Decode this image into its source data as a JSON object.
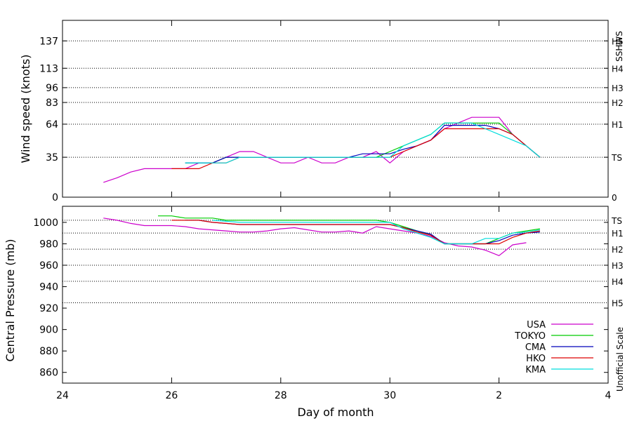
{
  "chart_data": {
    "type": "line",
    "xlabel": "Day of month",
    "x_ticks": [
      {
        "day": 24,
        "label": "24"
      },
      {
        "day": 26,
        "label": "26"
      },
      {
        "day": 28,
        "label": "28"
      },
      {
        "day": 30,
        "label": "30"
      },
      {
        "day": 32,
        "label": "2"
      },
      {
        "day": 34,
        "label": "4"
      }
    ],
    "xlim": [
      24,
      34
    ],
    "legend": [
      {
        "name": "USA",
        "color": "#cc00cc"
      },
      {
        "name": "TOKYO",
        "color": "#00cc00"
      },
      {
        "name": "CMA",
        "color": "#0000bb"
      },
      {
        "name": "HKO",
        "color": "#dd0000"
      },
      {
        "name": "KMA",
        "color": "#00dddd"
      }
    ],
    "wind": {
      "ylabel": "Wind speed (knots)",
      "right_label": "SSHWS",
      "ylim": [
        0,
        155
      ],
      "yticks": [
        0,
        35,
        64,
        83,
        96,
        113,
        137
      ],
      "levels": [
        {
          "value": 0,
          "label": "0"
        },
        {
          "value": 35,
          "label": "TS"
        },
        {
          "value": 64,
          "label": "H1"
        },
        {
          "value": 83,
          "label": "H2"
        },
        {
          "value": 96,
          "label": "H3"
        },
        {
          "value": 113,
          "label": "H4"
        },
        {
          "value": 137,
          "label": "H5"
        }
      ],
      "series": [
        {
          "name": "USA",
          "x": [
            24.75,
            25.0,
            25.25,
            25.5,
            25.75,
            26.0,
            26.25,
            26.5,
            26.75,
            27.0,
            27.25,
            27.5,
            27.75,
            28.0,
            28.25,
            28.5,
            28.75,
            29.0,
            29.25,
            29.5,
            29.75,
            30.0,
            30.25,
            30.5,
            30.75,
            31.0,
            31.25,
            31.5,
            31.75,
            32.0,
            32.25,
            32.5,
            32.75
          ],
          "y": [
            13,
            17,
            22,
            25,
            25,
            25,
            25,
            30,
            30,
            35,
            40,
            40,
            35,
            30,
            30,
            35,
            30,
            30,
            35,
            35,
            40,
            30,
            40,
            45,
            50,
            60,
            65,
            70,
            70,
            70,
            55,
            45,
            35
          ]
        },
        {
          "name": "TOKYO",
          "x": [
            26.25,
            26.5,
            26.75,
            27.0,
            27.25,
            27.5,
            27.75,
            28.0,
            28.25,
            28.5,
            28.75,
            29.0,
            29.25,
            29.5,
            29.75,
            30.0,
            30.25,
            30.5,
            30.75,
            31.0,
            31.25,
            31.5,
            31.75,
            32.0,
            32.25,
            32.5,
            32.75
          ],
          "y": [
            30,
            30,
            30,
            35,
            35,
            35,
            35,
            35,
            35,
            35,
            35,
            35,
            35,
            35,
            35,
            40,
            45,
            50,
            55,
            65,
            65,
            65,
            65,
            65,
            55,
            45,
            35
          ]
        },
        {
          "name": "CMA",
          "x": [
            26.25,
            26.5,
            26.75,
            27.0,
            27.25,
            27.5,
            27.75,
            28.0,
            28.25,
            28.5,
            28.75,
            29.0,
            29.25,
            29.5,
            29.75,
            30.0,
            30.25,
            30.5,
            30.75,
            31.0,
            31.25,
            31.5,
            31.75,
            32.0,
            32.25,
            32.5,
            32.75
          ],
          "y": [
            30,
            30,
            30,
            35,
            35,
            35,
            35,
            35,
            35,
            35,
            35,
            35,
            35,
            38,
            38,
            38,
            42,
            45,
            50,
            63,
            63,
            63,
            63,
            60,
            55,
            45,
            35
          ]
        },
        {
          "name": "HKO",
          "x": [
            26.0,
            26.25,
            26.5,
            26.75,
            27.0,
            27.25,
            27.5,
            27.75,
            28.0,
            28.25,
            28.5,
            28.75,
            29.0,
            29.25,
            29.5,
            29.75,
            30.0,
            30.25,
            30.5,
            30.75,
            31.0,
            31.25,
            31.5,
            31.75,
            32.0,
            32.25,
            32.5,
            32.75
          ],
          "y": [
            25,
            25,
            25,
            30,
            30,
            35,
            35,
            35,
            35,
            35,
            35,
            35,
            35,
            35,
            35,
            35,
            35,
            40,
            45,
            50,
            60,
            60,
            60,
            60,
            60,
            55,
            45,
            35
          ]
        },
        {
          "name": "KMA",
          "x": [
            26.25,
            26.5,
            26.75,
            27.0,
            27.25,
            27.5,
            27.75,
            28.0,
            28.25,
            28.5,
            28.75,
            29.0,
            29.25,
            29.5,
            29.75,
            30.0,
            30.25,
            30.5,
            30.75,
            31.0,
            31.25,
            31.5,
            31.75,
            32.0,
            32.25,
            32.5,
            32.75
          ],
          "y": [
            30,
            30,
            30,
            30,
            35,
            35,
            35,
            35,
            35,
            35,
            35,
            35,
            35,
            35,
            35,
            35,
            45,
            50,
            55,
            65,
            65,
            65,
            60,
            55,
            50,
            45,
            35
          ]
        }
      ]
    },
    "pressure": {
      "ylabel": "Central Pressure (mb)",
      "right_label": "Unofficial Scale",
      "ylim": [
        850,
        1015
      ],
      "yticks": [
        860,
        880,
        900,
        920,
        940,
        960,
        980,
        1000
      ],
      "levels": [
        {
          "value": 1002,
          "label": "TS"
        },
        {
          "value": 990,
          "label": "H1"
        },
        {
          "value": 975,
          "label": "H2"
        },
        {
          "value": 960,
          "label": "H3"
        },
        {
          "value": 945,
          "label": "H4"
        },
        {
          "value": 925,
          "label": "H5"
        }
      ],
      "series": [
        {
          "name": "USA",
          "x": [
            24.75,
            25.0,
            25.25,
            25.5,
            25.75,
            26.0,
            26.25,
            26.5,
            26.75,
            27.0,
            27.25,
            27.5,
            27.75,
            28.0,
            28.25,
            28.5,
            28.75,
            29.0,
            29.25,
            29.5,
            29.75,
            30.0,
            30.25,
            30.5,
            30.75,
            31.0,
            31.25,
            31.5,
            31.75,
            32.0,
            32.25,
            32.5
          ],
          "y": [
            1004,
            1002,
            999,
            997,
            997,
            997,
            996,
            994,
            993,
            992,
            991,
            991,
            992,
            994,
            995,
            993,
            991,
            991,
            992,
            990,
            996,
            994,
            992,
            990,
            987,
            981,
            978,
            977,
            974,
            969,
            979,
            981
          ]
        },
        {
          "name": "TOKYO",
          "x": [
            25.75,
            26.0,
            26.25,
            26.5,
            26.75,
            27.0,
            27.25,
            27.5,
            27.75,
            28.0,
            28.25,
            28.5,
            28.75,
            29.0,
            29.25,
            29.5,
            29.75,
            30.0,
            30.25,
            30.5,
            30.75,
            31.0,
            31.25,
            31.5,
            31.75,
            32.0,
            32.25,
            32.5,
            32.75
          ],
          "y": [
            1006,
            1006,
            1004,
            1004,
            1004,
            1002,
            1002,
            1002,
            1002,
            1002,
            1002,
            1002,
            1002,
            1002,
            1002,
            1002,
            1002,
            1000,
            996,
            992,
            988,
            980,
            980,
            980,
            980,
            985,
            990,
            992,
            994
          ]
        },
        {
          "name": "CMA",
          "x": [
            26.25,
            26.5,
            26.75,
            27.0,
            27.25,
            27.5,
            27.75,
            28.0,
            28.25,
            28.5,
            28.75,
            29.0,
            29.25,
            29.5,
            29.75,
            30.0,
            30.25,
            30.5,
            30.75,
            31.0,
            31.25,
            31.5,
            31.75,
            32.0,
            32.25,
            32.5,
            32.75
          ],
          "y": [
            1002,
            1002,
            1000,
            999,
            998,
            998,
            998,
            998,
            998,
            998,
            998,
            998,
            998,
            998,
            998,
            998,
            995,
            992,
            989,
            980,
            980,
            980,
            980,
            983,
            988,
            990,
            991
          ]
        },
        {
          "name": "HKO",
          "x": [
            26.0,
            26.25,
            26.5,
            26.75,
            27.0,
            27.25,
            27.5,
            27.75,
            28.0,
            28.25,
            28.5,
            28.75,
            29.0,
            29.25,
            29.5,
            29.75,
            30.0,
            30.25,
            30.5,
            30.75,
            31.0,
            31.25,
            31.5,
            31.75,
            32.0,
            32.25,
            32.5,
            32.75
          ],
          "y": [
            1002,
            1002,
            1002,
            1000,
            999,
            998,
            998,
            998,
            998,
            998,
            998,
            998,
            998,
            998,
            998,
            998,
            998,
            995,
            991,
            988,
            980,
            980,
            980,
            980,
            980,
            986,
            990,
            992
          ]
        },
        {
          "name": "KMA",
          "x": [
            26.75,
            27.0,
            27.25,
            27.5,
            27.75,
            28.0,
            28.25,
            28.5,
            28.75,
            29.0,
            29.25,
            29.5,
            29.75,
            30.0,
            30.25,
            30.5,
            30.75,
            31.0,
            31.25,
            31.5,
            31.75,
            32.0,
            32.25,
            32.5,
            32.75
          ],
          "y": [
            1002,
            1001,
            1000,
            1000,
            1000,
            1000,
            1000,
            1000,
            1000,
            1000,
            1000,
            1000,
            1000,
            1000,
            994,
            990,
            986,
            980,
            980,
            980,
            985,
            985,
            990,
            991,
            993
          ]
        }
      ]
    }
  }
}
